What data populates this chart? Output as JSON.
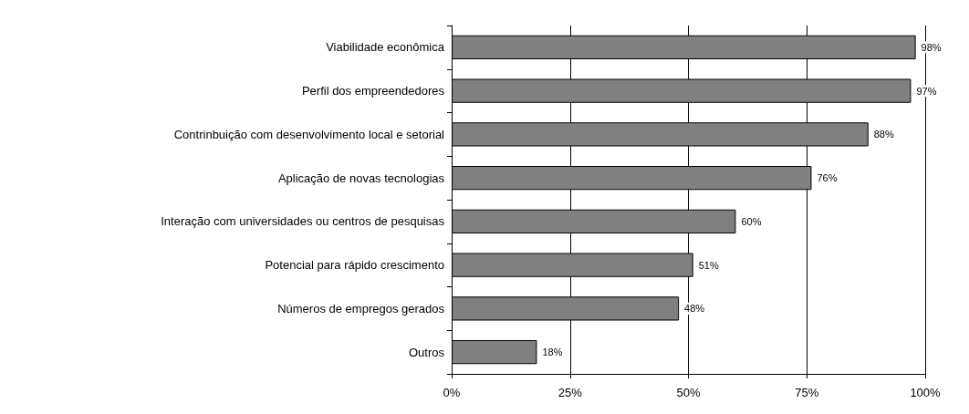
{
  "chart_data": {
    "type": "bar",
    "orientation": "horizontal",
    "categories": [
      "Viabilidade econômica",
      "Perfil dos empreendedores",
      "Contrinbuição com desenvolvimento local e setorial",
      "Aplicação de novas tecnologias",
      "Interação com universidades ou centros de pesquisas",
      "Potencial para rápido crescimento",
      "Números de empregos gerados",
      "Outros"
    ],
    "values": [
      98,
      97,
      88,
      76,
      60,
      51,
      48,
      18
    ],
    "value_labels": [
      "98%",
      "97%",
      "88%",
      "76%",
      "60%",
      "51%",
      "48%",
      "18%"
    ],
    "color": "#808080",
    "xlim": [
      0,
      100
    ],
    "xticks": [
      {
        "value": 0,
        "label": "0%"
      },
      {
        "value": 25,
        "label": "25%"
      },
      {
        "value": 50,
        "label": "50%"
      },
      {
        "value": 75,
        "label": "75%"
      },
      {
        "value": 100,
        "label": "100%"
      }
    ],
    "grid": "x"
  }
}
